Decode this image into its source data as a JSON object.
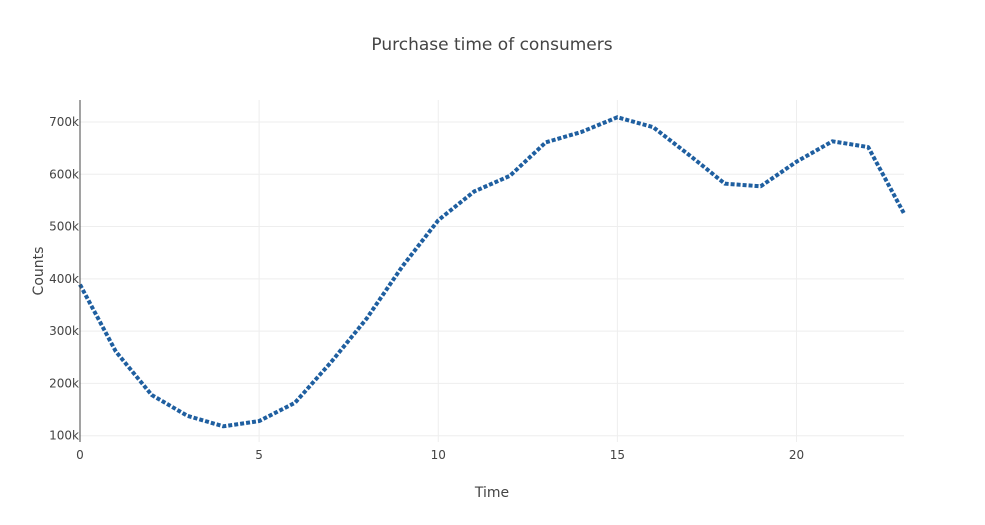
{
  "chart_data": {
    "type": "line",
    "title": "Purchase time of consumers",
    "xlabel": "Time",
    "ylabel": "Counts",
    "x": [
      0,
      1,
      2,
      3,
      4,
      5,
      6,
      7,
      8,
      9,
      10,
      11,
      12,
      13,
      14,
      15,
      16,
      17,
      18,
      19,
      20,
      21,
      22,
      23
    ],
    "series": [
      {
        "values": [
          389000,
          261000,
          178000,
          138000,
          118000,
          128000,
          163000,
          240000,
          324000,
          424000,
          512000,
          567000,
          597000,
          661000,
          681000,
          709000,
          690000,
          637000,
          582000,
          577000,
          624000,
          663000,
          652000,
          525000
        ]
      }
    ],
    "xlim": [
      0,
      23
    ],
    "ylim": [
      88000,
      742000
    ],
    "x_ticks": [
      {
        "value": 0,
        "label": "0"
      },
      {
        "value": 5,
        "label": "5"
      },
      {
        "value": 10,
        "label": "10"
      },
      {
        "value": 15,
        "label": "15"
      },
      {
        "value": 20,
        "label": "20"
      }
    ],
    "y_ticks": [
      {
        "value": 100000,
        "label": "100k"
      },
      {
        "value": 200000,
        "label": "200k"
      },
      {
        "value": 300000,
        "label": "300k"
      },
      {
        "value": 400000,
        "label": "400k"
      },
      {
        "value": 500000,
        "label": "500k"
      },
      {
        "value": 600000,
        "label": "600k"
      },
      {
        "value": 700000,
        "label": "700k"
      }
    ],
    "grid": true,
    "line_style": "dotted",
    "colors": {
      "series": "#1f5fa0",
      "grid": "#eeeeee",
      "axis": "#444444"
    }
  }
}
